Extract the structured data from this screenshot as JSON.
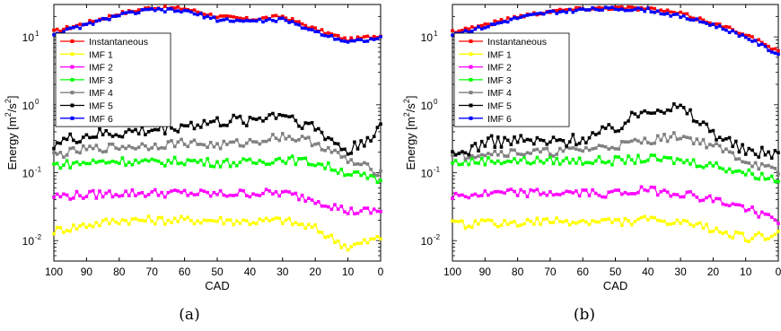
{
  "chart_data": [
    {
      "type": "line",
      "caption": "(a)",
      "xlabel": "CAD",
      "ylabel": "Energy [m^2/s^2]",
      "ylabel_parts": {
        "main": "Energy [m",
        "e1": "2",
        "mid": "/s",
        "e2": "2",
        "end": "]"
      },
      "xlim": [
        100,
        0
      ],
      "ylim": [
        0.005,
        30
      ],
      "yscale": "log",
      "x_reversed": true,
      "grid": false,
      "legend_position": "top-left",
      "x_ticks": [
        100,
        90,
        80,
        70,
        60,
        50,
        40,
        30,
        20,
        10,
        0
      ],
      "y_ticks": [
        {
          "value": 10,
          "base": "10",
          "exp": "1"
        },
        {
          "value": 1,
          "base": "10",
          "exp": "0"
        },
        {
          "value": 0.1,
          "base": "10",
          "exp": "-1"
        },
        {
          "value": 0.01,
          "base": "10",
          "exp": "-2"
        }
      ],
      "x": [
        100,
        90,
        80,
        70,
        60,
        50,
        40,
        30,
        20,
        10,
        0
      ],
      "series": [
        {
          "name": "Instantaneous",
          "color": "#ff0000",
          "values": [
            12,
            16,
            22,
            27,
            26,
            20,
            18,
            20,
            13,
            9,
            10.5
          ]
        },
        {
          "name": "IMF 1",
          "color": "#ffff00",
          "values": [
            0.014,
            0.017,
            0.02,
            0.02,
            0.02,
            0.02,
            0.019,
            0.02,
            0.015,
            0.008,
            0.011
          ]
        },
        {
          "name": "IMF 2",
          "color": "#ff00ff",
          "values": [
            0.045,
            0.047,
            0.05,
            0.05,
            0.05,
            0.048,
            0.05,
            0.05,
            0.04,
            0.027,
            0.027
          ]
        },
        {
          "name": "IMF 3",
          "color": "#00ff00",
          "values": [
            0.13,
            0.14,
            0.15,
            0.14,
            0.15,
            0.14,
            0.14,
            0.16,
            0.14,
            0.1,
            0.075
          ]
        },
        {
          "name": "IMF 4",
          "color": "#808080",
          "values": [
            0.18,
            0.22,
            0.24,
            0.25,
            0.28,
            0.25,
            0.28,
            0.35,
            0.28,
            0.15,
            0.1
          ]
        },
        {
          "name": "IMF 5",
          "color": "#000000",
          "values": [
            0.27,
            0.35,
            0.38,
            0.42,
            0.5,
            0.55,
            0.6,
            0.75,
            0.45,
            0.2,
            0.45
          ]
        },
        {
          "name": "IMF 6",
          "color": "#0000ff",
          "values": [
            11,
            15,
            21,
            25,
            24,
            18,
            17,
            18,
            12,
            8.5,
            9.5
          ]
        }
      ]
    },
    {
      "type": "line",
      "caption": "(b)",
      "xlabel": "CAD",
      "ylabel": "Energy [m^2/s^2]",
      "ylabel_parts": {
        "main": "Energy [m",
        "e1": "2",
        "mid": "/s",
        "e2": "2",
        "end": "]"
      },
      "xlim": [
        100,
        0
      ],
      "ylim": [
        0.005,
        30
      ],
      "yscale": "log",
      "x_reversed": true,
      "grid": false,
      "legend_position": "top-left",
      "x_ticks": [
        100,
        90,
        80,
        70,
        60,
        50,
        40,
        30,
        20,
        10,
        0
      ],
      "y_ticks": [
        {
          "value": 10,
          "base": "10",
          "exp": "1"
        },
        {
          "value": 1,
          "base": "10",
          "exp": "0"
        },
        {
          "value": 0.1,
          "base": "10",
          "exp": "-1"
        },
        {
          "value": 0.01,
          "base": "10",
          "exp": "-2"
        }
      ],
      "x": [
        100,
        90,
        80,
        70,
        60,
        50,
        40,
        30,
        20,
        10,
        0
      ],
      "series": [
        {
          "name": "Instantaneous",
          "color": "#ff0000",
          "values": [
            12,
            15,
            20,
            24,
            26,
            27,
            26,
            22,
            16,
            11,
            6
          ]
        },
        {
          "name": "IMF 1",
          "color": "#ffff00",
          "values": [
            0.017,
            0.018,
            0.018,
            0.019,
            0.019,
            0.019,
            0.02,
            0.018,
            0.015,
            0.011,
            0.012
          ]
        },
        {
          "name": "IMF 2",
          "color": "#ff00ff",
          "values": [
            0.045,
            0.048,
            0.05,
            0.05,
            0.05,
            0.05,
            0.055,
            0.05,
            0.04,
            0.03,
            0.02
          ]
        },
        {
          "name": "IMF 3",
          "color": "#00ff00",
          "values": [
            0.14,
            0.15,
            0.15,
            0.15,
            0.15,
            0.15,
            0.16,
            0.15,
            0.13,
            0.1,
            0.08
          ]
        },
        {
          "name": "IMF 4",
          "color": "#808080",
          "values": [
            0.17,
            0.2,
            0.2,
            0.2,
            0.22,
            0.25,
            0.3,
            0.35,
            0.25,
            0.15,
            0.1
          ]
        },
        {
          "name": "IMF 5",
          "color": "#000000",
          "values": [
            0.17,
            0.28,
            0.3,
            0.28,
            0.32,
            0.45,
            0.9,
            0.9,
            0.4,
            0.2,
            0.2
          ]
        },
        {
          "name": "IMF 6",
          "color": "#0000ff",
          "values": [
            11,
            14,
            19,
            23,
            25,
            26,
            25,
            20,
            15,
            10,
            5.5
          ]
        }
      ]
    }
  ]
}
